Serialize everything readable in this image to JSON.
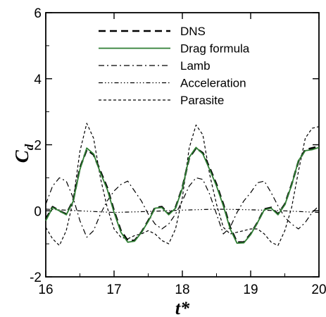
{
  "chart_data": {
    "type": "line",
    "title": "",
    "xlabel": "t*",
    "ylabel": "C",
    "ylabel_subscript": "d",
    "xlim": [
      16,
      20
    ],
    "ylim": [
      -2,
      6
    ],
    "xticks": [
      16,
      17,
      18,
      19,
      20
    ],
    "yticks": [
      -2,
      0,
      2,
      4,
      6
    ],
    "grid": false,
    "legend_position": "top-center",
    "series": [
      {
        "name": "DNS",
        "color": "#000000",
        "dash": "10,6",
        "width": 2.6,
        "x": [
          16.0,
          16.1,
          16.2,
          16.3,
          16.4,
          16.5,
          16.6,
          16.7,
          16.8,
          16.9,
          17.0,
          17.1,
          17.2,
          17.3,
          17.4,
          17.5,
          17.6,
          17.7,
          17.8,
          17.9,
          18.0,
          18.1,
          18.2,
          18.3,
          18.4,
          18.5,
          18.6,
          18.7,
          18.8,
          18.9,
          19.0,
          19.1,
          19.2,
          19.3,
          19.4,
          19.5,
          19.6,
          19.7,
          19.8,
          19.9,
          20.0
        ],
        "y": [
          -0.25,
          0.12,
          0.0,
          -0.1,
          0.3,
          1.3,
          1.85,
          1.7,
          1.2,
          0.7,
          0.0,
          -0.6,
          -0.9,
          -0.9,
          -0.65,
          -0.3,
          0.1,
          0.12,
          -0.1,
          0.1,
          0.7,
          1.6,
          1.9,
          1.75,
          1.3,
          0.8,
          0.2,
          -0.5,
          -0.95,
          -0.95,
          -0.7,
          -0.35,
          0.05,
          0.1,
          -0.1,
          0.2,
          0.8,
          1.5,
          1.85,
          1.9,
          1.95
        ]
      },
      {
        "name": "Drag formula",
        "color": "#2e7d32",
        "dash": "",
        "width": 1.8,
        "x": [
          16.0,
          16.1,
          16.2,
          16.3,
          16.4,
          16.5,
          16.6,
          16.7,
          16.8,
          16.9,
          17.0,
          17.1,
          17.2,
          17.3,
          17.4,
          17.5,
          17.6,
          17.7,
          17.8,
          17.9,
          18.0,
          18.1,
          18.2,
          18.3,
          18.4,
          18.5,
          18.6,
          18.7,
          18.8,
          18.9,
          19.0,
          19.1,
          19.2,
          19.3,
          19.4,
          19.5,
          19.6,
          19.7,
          19.8,
          19.9,
          20.0
        ],
        "y": [
          -0.3,
          0.1,
          0.0,
          -0.12,
          0.28,
          1.25,
          1.9,
          1.72,
          1.15,
          0.65,
          -0.05,
          -0.65,
          -0.95,
          -0.92,
          -0.66,
          -0.32,
          0.08,
          0.1,
          -0.12,
          0.08,
          0.68,
          1.62,
          1.92,
          1.72,
          1.25,
          0.75,
          0.15,
          -0.55,
          -0.98,
          -0.97,
          -0.72,
          -0.36,
          0.03,
          0.08,
          -0.12,
          0.18,
          0.78,
          1.52,
          1.82,
          1.85,
          1.92
        ]
      },
      {
        "name": "Lamb",
        "color": "#000000",
        "dash": "8,4,2,4",
        "width": 1.2,
        "x": [
          16.0,
          16.1,
          16.2,
          16.3,
          16.4,
          16.5,
          16.6,
          16.7,
          16.8,
          16.9,
          17.0,
          17.1,
          17.2,
          17.3,
          17.4,
          17.5,
          17.6,
          17.7,
          17.8,
          17.9,
          18.0,
          18.1,
          18.2,
          18.3,
          18.4,
          18.5,
          18.6,
          18.7,
          18.8,
          18.9,
          19.0,
          19.1,
          19.2,
          19.3,
          19.4,
          19.5,
          19.6,
          19.7,
          19.8,
          19.9,
          20.0
        ],
        "y": [
          0.2,
          0.75,
          1.0,
          0.9,
          0.4,
          -0.3,
          -0.8,
          -0.6,
          -0.1,
          0.3,
          0.6,
          0.8,
          0.9,
          0.6,
          0.3,
          -0.1,
          -0.4,
          -0.55,
          -0.4,
          -0.1,
          0.3,
          0.75,
          1.0,
          0.95,
          0.5,
          -0.1,
          -0.7,
          -0.5,
          -0.05,
          0.3,
          0.55,
          0.85,
          0.9,
          0.55,
          0.15,
          -0.2,
          -0.4,
          -0.55,
          -0.35,
          -0.05,
          0.15
        ]
      },
      {
        "name": "Acceleration",
        "color": "#000000",
        "dash": "6,3,1.5,3,1.5,3,1.5,3",
        "width": 1.2,
        "x": [
          16.0,
          16.5,
          17.0,
          17.5,
          18.0,
          18.5,
          19.0,
          19.5,
          20.0
        ],
        "y": [
          0.05,
          0.0,
          -0.05,
          -0.02,
          0.02,
          0.05,
          0.03,
          0.0,
          -0.05
        ]
      },
      {
        "name": "Parasite",
        "color": "#000000",
        "dash": "4,3",
        "width": 1.2,
        "x": [
          16.0,
          16.1,
          16.2,
          16.3,
          16.4,
          16.5,
          16.6,
          16.7,
          16.8,
          16.9,
          17.0,
          17.1,
          17.2,
          17.3,
          17.4,
          17.5,
          17.6,
          17.7,
          17.8,
          17.9,
          18.0,
          18.1,
          18.2,
          18.3,
          18.4,
          18.5,
          18.6,
          18.7,
          18.8,
          18.9,
          19.0,
          19.1,
          19.2,
          19.3,
          19.4,
          19.5,
          19.6,
          19.7,
          19.8,
          19.9,
          20.0
        ],
        "y": [
          -0.5,
          -0.85,
          -1.05,
          -0.6,
          0.3,
          1.8,
          2.65,
          2.2,
          1.0,
          0.1,
          -0.55,
          -0.8,
          -0.85,
          -0.75,
          -0.7,
          -0.6,
          -0.7,
          -0.9,
          -1.0,
          -0.55,
          0.4,
          1.9,
          2.6,
          2.3,
          1.1,
          0.2,
          -0.5,
          -0.7,
          -0.65,
          -0.6,
          -0.55,
          -0.55,
          -0.7,
          -0.95,
          -1.05,
          -0.6,
          0.1,
          1.2,
          2.2,
          2.5,
          2.55
        ]
      }
    ]
  }
}
